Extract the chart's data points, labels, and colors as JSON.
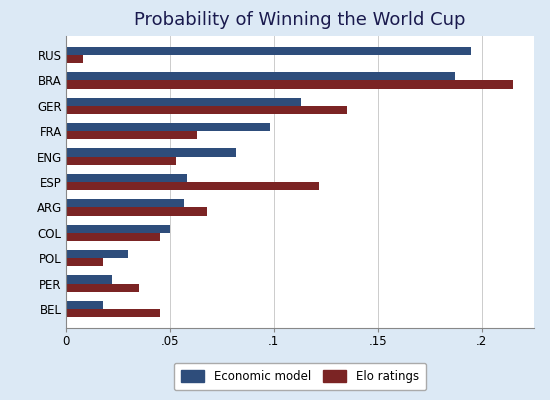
{
  "title": "Probability of Winning the World Cup",
  "countries": [
    "RUS",
    "BRA",
    "GER",
    "FRA",
    "ENG",
    "ESP",
    "ARG",
    "COL",
    "POL",
    "PER",
    "BEL"
  ],
  "economic_model": [
    0.195,
    0.187,
    0.113,
    0.098,
    0.082,
    0.058,
    0.057,
    0.05,
    0.03,
    0.022,
    0.018
  ],
  "elo_ratings": [
    0.008,
    0.215,
    0.135,
    0.063,
    0.053,
    0.122,
    0.068,
    0.045,
    0.018,
    0.035,
    0.045
  ],
  "color_economic": "#2e4d7b",
  "color_elo": "#7b2424",
  "background_color": "#dce9f5",
  "plot_bg_color": "#ffffff",
  "legend_labels": [
    "Economic model",
    "Elo ratings"
  ],
  "xlim": [
    0,
    0.225
  ],
  "xticks": [
    0,
    0.05,
    0.1,
    0.15,
    0.2
  ],
  "xticklabels": [
    "0",
    ".05",
    ".1",
    ".15",
    ".2"
  ],
  "bar_height": 0.32,
  "bar_gap": 0.005,
  "title_fontsize": 13,
  "tick_fontsize": 8.5,
  "label_fontsize": 8.5
}
